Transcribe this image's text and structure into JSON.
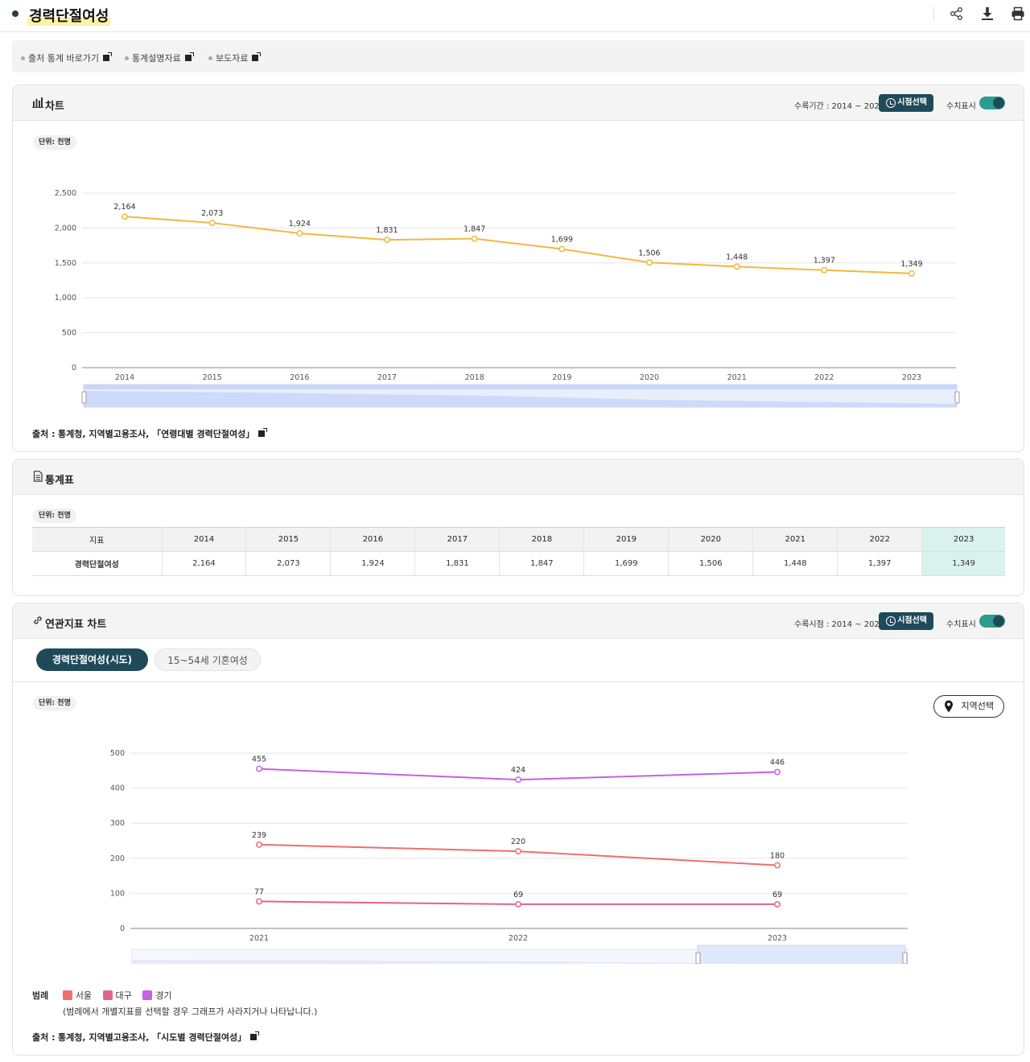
{
  "header": {
    "title": "경력단절여성"
  },
  "links": [
    {
      "label": "출처 통계 바로가기"
    },
    {
      "label": "통계설명자료"
    },
    {
      "label": "보도자료"
    }
  ],
  "chart_panel": {
    "title": "차트",
    "period_label": "수록기간 : 2014 ~ 2023",
    "select_button": "시점선택",
    "toggle_label": "수치표시",
    "unit": "단위: 천명",
    "source_prefix": "출처 :",
    "source_text": "통계청, 지역별고용조사, 「연령대별 경력단절여성」"
  },
  "table_panel": {
    "title": "통계표",
    "unit": "단위: 천명",
    "columns": [
      "지표",
      "2014",
      "2015",
      "2016",
      "2017",
      "2018",
      "2019",
      "2020",
      "2021",
      "2022",
      "2023"
    ],
    "rows": [
      [
        "경력단절여성",
        "2,164",
        "2,073",
        "1,924",
        "1,831",
        "1,847",
        "1,699",
        "1,506",
        "1,448",
        "1,397",
        "1,349"
      ]
    ]
  },
  "related_panel": {
    "title": "연관지표 차트",
    "period_label": "수록시점 : 2014 ~ 2023",
    "select_button": "시점선택",
    "toggle_label": "수치표시",
    "tabs": [
      "경력단절여성(시도)",
      "15~54세 기혼여성"
    ],
    "unit": "단위: 천명",
    "region_button": "지역선택",
    "legend_title": "범례",
    "legend_note": "(범례에서 개별지표를 선택할 경우 그래프가 사라지거나 나타납니다.)",
    "source_prefix": "출처 :",
    "source_text": "통계청, 지역별고용조사, 「시도별 경력단절여성」"
  },
  "chart_data": [
    {
      "type": "line",
      "x": [
        "2014",
        "2015",
        "2016",
        "2017",
        "2018",
        "2019",
        "2020",
        "2021",
        "2022",
        "2023"
      ],
      "series": [
        {
          "values": [
            2164,
            2073,
            1924,
            1831,
            1847,
            1699,
            1506,
            1448,
            1397,
            1349
          ],
          "color": "#f2b840"
        }
      ],
      "data_labels": [
        "2,164",
        "2,073",
        "1,924",
        "1,831",
        "1,847",
        "1,699",
        "1,506",
        "1,448",
        "1,397",
        "1,349"
      ],
      "yticks": [
        "0",
        "500",
        "1,000",
        "1,500",
        "2,000",
        "2,500"
      ],
      "ylim": [
        0,
        2500
      ],
      "grid": true
    },
    {
      "type": "line",
      "x": [
        "2021",
        "2022",
        "2023"
      ],
      "series": [
        {
          "name": "서울",
          "values": [
            239,
            220,
            180
          ],
          "labels": [
            "239",
            "220",
            "180"
          ],
          "color": "#ee6e6e"
        },
        {
          "name": "대구",
          "values": [
            77,
            69,
            69
          ],
          "labels": [
            "77",
            "69",
            "69"
          ],
          "color": "#e6608f"
        },
        {
          "name": "경기",
          "values": [
            455,
            424,
            446
          ],
          "labels": [
            "455",
            "424",
            "446"
          ],
          "color": "#c462e0"
        }
      ],
      "yticks": [
        "0",
        "100",
        "200",
        "300",
        "400",
        "500"
      ],
      "ylim": [
        0,
        500
      ],
      "grid": true,
      "legend_position": "bottom-left"
    }
  ]
}
